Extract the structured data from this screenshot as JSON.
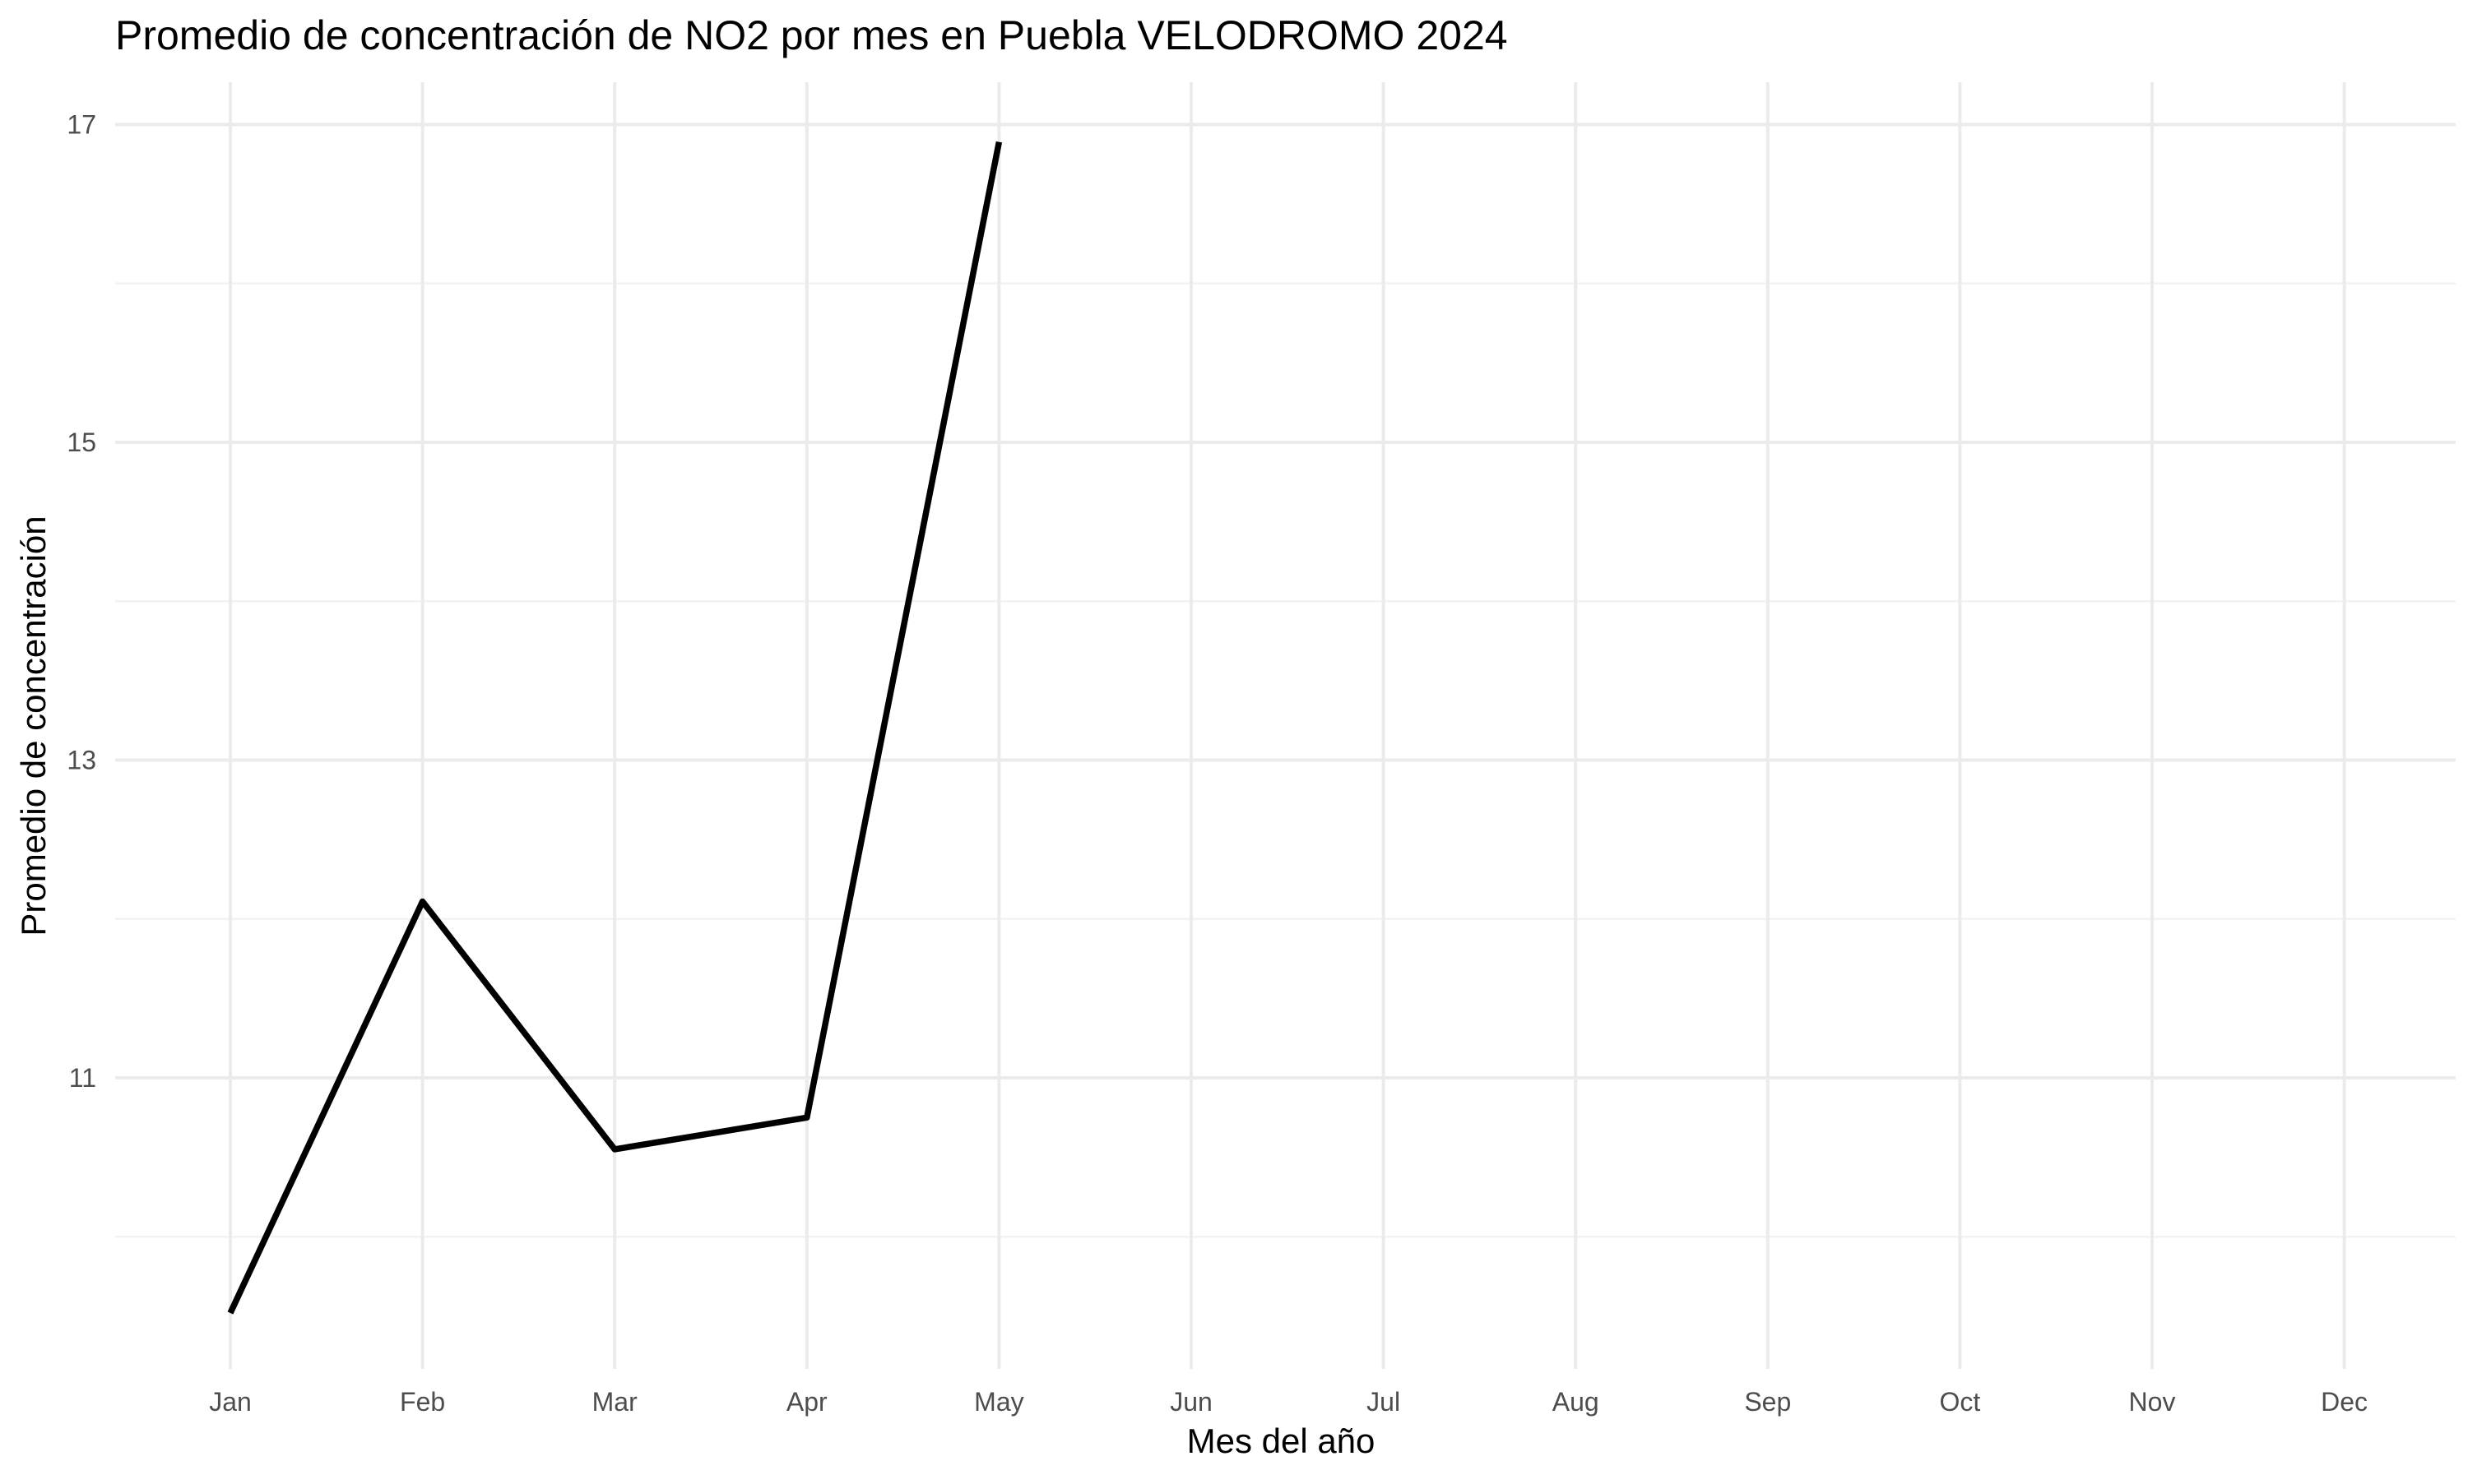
{
  "chart_data": {
    "type": "line",
    "title": "Promedio de concentración de NO2 por mes en Puebla VELODROMO 2024",
    "xlabel": "Mes del año",
    "ylabel": "Promedio de concentración",
    "categories": [
      "Jan",
      "Feb",
      "Mar",
      "Apr",
      "May",
      "Jun",
      "Jul",
      "Aug",
      "Sep",
      "Oct",
      "Nov",
      "Dec"
    ],
    "series": [
      {
        "values": [
          9.52,
          12.11,
          10.55,
          10.75,
          16.89,
          null,
          null,
          null,
          null,
          null,
          null,
          null
        ]
      }
    ],
    "ylim": [
      9.3,
      17.3
    ],
    "y_ticks": [
      11,
      13,
      15,
      17
    ],
    "y_tick_labels": [
      "11",
      "13",
      "15",
      "17"
    ],
    "y_minor_ticks": [
      10,
      12,
      14,
      16
    ],
    "grid": true,
    "line_color": "#000000",
    "grid_color": "#ebebeb",
    "background": "#ffffff"
  }
}
